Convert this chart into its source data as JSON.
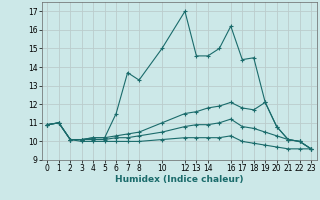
{
  "xlabel": "Humidex (Indice chaleur)",
  "background_color": "#cce8e8",
  "grid_color": "#bbcccc",
  "line_color": "#1a6b6b",
  "xlim": [
    -0.5,
    23.5
  ],
  "ylim": [
    9,
    17.5
  ],
  "yticks": [
    9,
    10,
    11,
    12,
    13,
    14,
    15,
    16,
    17
  ],
  "xtick_positions": [
    0,
    1,
    2,
    3,
    4,
    5,
    6,
    7,
    8,
    10,
    12,
    13,
    14,
    16,
    17,
    18,
    19,
    20,
    21,
    22,
    23
  ],
  "xtick_labels": [
    "0",
    "1",
    "2",
    "3",
    "4",
    "5",
    "6",
    "7",
    "8",
    "10",
    "12",
    "13",
    "14",
    "16",
    "17",
    "18",
    "19",
    "20",
    "21",
    "22",
    "23"
  ],
  "lines": [
    {
      "x": [
        0,
        1,
        2,
        3,
        4,
        5,
        6,
        7,
        8,
        10,
        12,
        13,
        14,
        15,
        16,
        17,
        18,
        19,
        20,
        21,
        22,
        23
      ],
      "y": [
        10.9,
        11.0,
        10.1,
        10.1,
        10.2,
        10.2,
        11.5,
        13.7,
        13.3,
        15.0,
        17.0,
        14.6,
        14.6,
        15.0,
        16.2,
        14.4,
        14.5,
        12.1,
        10.8,
        10.1,
        10.0,
        9.6
      ]
    },
    {
      "x": [
        0,
        1,
        2,
        3,
        4,
        5,
        6,
        7,
        8,
        10,
        12,
        13,
        14,
        15,
        16,
        17,
        18,
        19,
        20,
        21,
        22,
        23
      ],
      "y": [
        10.9,
        11.0,
        10.1,
        10.1,
        10.2,
        10.2,
        10.3,
        10.4,
        10.5,
        11.0,
        11.5,
        11.6,
        11.8,
        11.9,
        12.1,
        11.8,
        11.7,
        12.1,
        10.8,
        10.1,
        10.0,
        9.6
      ]
    },
    {
      "x": [
        0,
        1,
        2,
        3,
        4,
        5,
        6,
        7,
        8,
        10,
        12,
        13,
        14,
        15,
        16,
        17,
        18,
        19,
        20,
        21,
        22,
        23
      ],
      "y": [
        10.9,
        11.0,
        10.1,
        10.1,
        10.1,
        10.1,
        10.2,
        10.2,
        10.3,
        10.5,
        10.8,
        10.9,
        10.9,
        11.0,
        11.2,
        10.8,
        10.7,
        10.5,
        10.3,
        10.1,
        10.0,
        9.6
      ]
    },
    {
      "x": [
        0,
        1,
        2,
        3,
        4,
        5,
        6,
        7,
        8,
        10,
        12,
        13,
        14,
        15,
        16,
        17,
        18,
        19,
        20,
        21,
        22,
        23
      ],
      "y": [
        10.9,
        11.0,
        10.1,
        10.0,
        10.0,
        10.0,
        10.0,
        10.0,
        10.0,
        10.1,
        10.2,
        10.2,
        10.2,
        10.2,
        10.3,
        10.0,
        9.9,
        9.8,
        9.7,
        9.6,
        9.6,
        9.6
      ]
    }
  ]
}
